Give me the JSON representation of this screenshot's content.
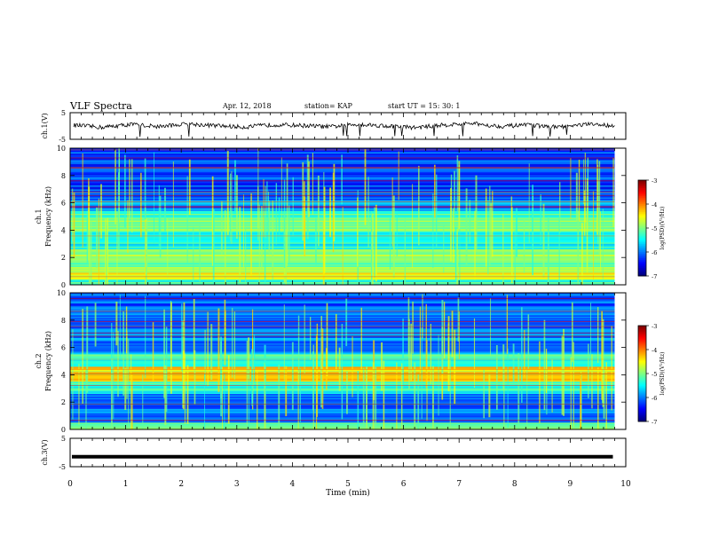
{
  "header": {
    "title": "VLF Spectra",
    "date": "Apr. 12, 2018",
    "station": "station= KAP",
    "start": "start  UT =   15: 30: 1"
  },
  "chart_data": [
    {
      "type": "line",
      "panel": "ch1-waveform",
      "ylabel": "ch.1(V)",
      "ylim": [
        -5,
        5
      ],
      "yticks": [
        "5",
        "-5"
      ],
      "xlim": [
        0,
        10
      ],
      "series": [
        {
          "values": [
            0.3,
            -0.5,
            0.6,
            -0.2,
            0.8,
            0.1,
            -0.4,
            0.5,
            0.2,
            -0.3,
            0.7,
            0.0,
            -0.6,
            0.4,
            0.9,
            -0.1,
            0.3,
            -0.5,
            0.6,
            0.2
          ]
        }
      ]
    },
    {
      "type": "heatmap",
      "panel": "ch1-spectrogram",
      "ylabel": "ch.1 Frequency (kHz)",
      "ylim": [
        0,
        10
      ],
      "yticks": [
        "0",
        "2",
        "4",
        "6",
        "8",
        "10"
      ],
      "xlim": [
        0,
        10
      ],
      "colorbar": {
        "label": "log(PSD)(V²/Hz)",
        "ticks": [
          "-3",
          "-4",
          "-5",
          "-6",
          "-7"
        ],
        "range": [
          -7,
          -3
        ]
      },
      "bands_khz": [
        {
          "from": 0.0,
          "to": 0.4,
          "level": -5.2
        },
        {
          "from": 0.4,
          "to": 0.9,
          "level": -4.6
        },
        {
          "from": 0.9,
          "to": 1.8,
          "level": -5.0
        },
        {
          "from": 1.8,
          "to": 2.6,
          "level": -4.9
        },
        {
          "from": 2.6,
          "to": 3.2,
          "level": -5.4
        },
        {
          "from": 3.2,
          "to": 3.9,
          "level": -5.6
        },
        {
          "from": 3.9,
          "to": 4.9,
          "level": -4.9
        },
        {
          "from": 4.9,
          "to": 5.4,
          "level": -5.3
        },
        {
          "from": 5.4,
          "to": 6.2,
          "level": -6.0
        },
        {
          "from": 6.2,
          "to": 10.0,
          "level": -6.2
        }
      ]
    },
    {
      "type": "heatmap",
      "panel": "ch2-spectrogram",
      "ylabel": "ch.2 Frequency (kHz)",
      "ylim": [
        0,
        10
      ],
      "yticks": [
        "0",
        "2",
        "4",
        "6",
        "8",
        "10"
      ],
      "xlim": [
        0,
        10
      ],
      "colorbar": {
        "label": "log(PSD)(V²/Hz)",
        "ticks": [
          "-3",
          "-4",
          "-5",
          "-6",
          "-7"
        ],
        "range": [
          -7,
          -3
        ]
      },
      "bands_khz": [
        {
          "from": 0.0,
          "to": 0.5,
          "level": -5.1
        },
        {
          "from": 0.5,
          "to": 1.5,
          "level": -6.0
        },
        {
          "from": 1.5,
          "to": 2.6,
          "level": -6.2
        },
        {
          "from": 2.6,
          "to": 3.5,
          "level": -5.3
        },
        {
          "from": 3.5,
          "to": 4.6,
          "level": -4.4
        },
        {
          "from": 4.6,
          "to": 5.5,
          "level": -5.2
        },
        {
          "from": 5.5,
          "to": 7.0,
          "level": -6.0
        },
        {
          "from": 7.0,
          "to": 10.0,
          "level": -6.1
        }
      ]
    },
    {
      "type": "line",
      "panel": "ch3-waveform",
      "ylabel": "ch.3(V)",
      "ylim": [
        -5,
        5
      ],
      "yticks": [
        "5",
        "-5"
      ],
      "xlabel": "Time (min)",
      "xlim": [
        0,
        10
      ],
      "xticks": [
        "0",
        "1",
        "2",
        "3",
        "4",
        "5",
        "6",
        "7",
        "8",
        "9",
        "10"
      ],
      "series": [
        {
          "values": [
            -1.5,
            -1.5
          ]
        }
      ]
    }
  ]
}
